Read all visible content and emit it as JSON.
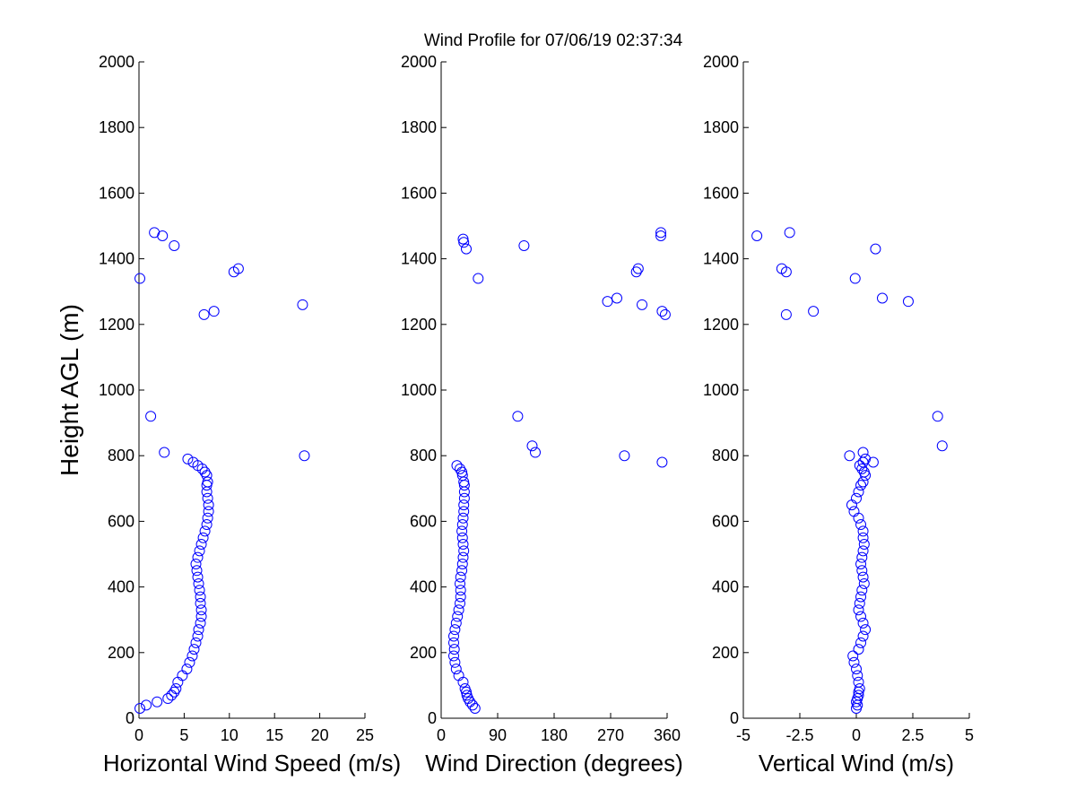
{
  "title": "Wind Profile for  07/06/19 02:37:34",
  "colors": {
    "marker": "#0000ff",
    "axes": "#000000",
    "background": "#ffffff"
  },
  "chart_data": [
    {
      "type": "scatter",
      "xlabel": "Horizontal Wind Speed (m/s)",
      "ylabel": "Height AGL (m)",
      "xlim": [
        0,
        25
      ],
      "ylim": [
        0,
        2000
      ],
      "xticks": [
        "0",
        "5",
        "10",
        "15",
        "20",
        "25"
      ],
      "xtick_values": [
        0,
        5,
        10,
        15,
        20,
        25
      ],
      "yticks": [
        "0",
        "200",
        "400",
        "600",
        "800",
        "1000",
        "1200",
        "1400",
        "1600",
        "1800",
        "2000"
      ],
      "ytick_values": [
        0,
        200,
        400,
        600,
        800,
        1000,
        1200,
        1400,
        1600,
        1800,
        2000
      ],
      "grid": false,
      "marker": "open-circle",
      "x": [
        0.1,
        0.8,
        2.0,
        3.2,
        3.6,
        3.9,
        4.1,
        4.3,
        4.8,
        5.3,
        5.6,
        5.9,
        6.1,
        6.3,
        6.5,
        6.6,
        6.8,
        6.9,
        6.9,
        6.8,
        6.8,
        6.7,
        6.6,
        6.5,
        6.4,
        6.3,
        6.5,
        6.7,
        6.9,
        7.1,
        7.3,
        7.5,
        7.6,
        7.7,
        7.7,
        7.6,
        7.5,
        7.5,
        7.6,
        7.5,
        7.3,
        7.0,
        6.5,
        6.0,
        5.4,
        2.8,
        18.3,
        1.3,
        18.1,
        7.2,
        8.3,
        0.1,
        10.5,
        11.0,
        3.9,
        2.6,
        1.7
      ],
      "y": [
        30,
        40,
        50,
        60,
        70,
        80,
        90,
        110,
        130,
        150,
        170,
        190,
        210,
        230,
        250,
        270,
        290,
        310,
        330,
        350,
        370,
        390,
        410,
        430,
        450,
        470,
        490,
        510,
        530,
        550,
        570,
        590,
        610,
        630,
        650,
        670,
        690,
        710,
        720,
        740,
        750,
        760,
        770,
        780,
        790,
        810,
        800,
        920,
        1260,
        1230,
        1240,
        1340,
        1360,
        1370,
        1440,
        1470,
        1480
      ]
    },
    {
      "type": "scatter",
      "xlabel": "Wind Direction (degrees)",
      "xlim": [
        0,
        360
      ],
      "ylim": [
        0,
        2000
      ],
      "xticks": [
        "0",
        "90",
        "180",
        "270",
        "360"
      ],
      "xtick_values": [
        0,
        90,
        180,
        270,
        360
      ],
      "yticks": [
        "0",
        "200",
        "400",
        "600",
        "800",
        "1000",
        "1200",
        "1400",
        "1600",
        "1800",
        "2000"
      ],
      "ytick_values": [
        0,
        200,
        400,
        600,
        800,
        1000,
        1200,
        1400,
        1600,
        1800,
        2000
      ],
      "grid": false,
      "marker": "open-circle",
      "x": [
        54,
        50,
        46,
        43,
        41,
        40,
        38,
        35,
        28,
        24,
        22,
        20,
        21,
        20,
        20,
        22,
        24,
        26,
        28,
        30,
        31,
        31,
        30,
        31,
        33,
        34,
        35,
        36,
        35,
        34,
        33,
        34,
        35,
        36,
        36,
        37,
        37,
        37,
        36,
        34,
        33,
        30,
        25,
        150,
        145,
        352,
        292,
        122,
        265,
        357,
        352,
        59,
        311,
        314,
        132,
        36,
        35,
        40,
        350,
        350,
        280,
        320
      ],
      "y": [
        30,
        40,
        50,
        60,
        70,
        80,
        90,
        110,
        130,
        150,
        170,
        190,
        210,
        230,
        250,
        270,
        290,
        310,
        330,
        350,
        370,
        390,
        410,
        430,
        450,
        470,
        490,
        510,
        530,
        550,
        570,
        590,
        610,
        630,
        650,
        670,
        690,
        710,
        720,
        740,
        750,
        760,
        770,
        810,
        830,
        780,
        800,
        920,
        1270,
        1230,
        1240,
        1340,
        1360,
        1370,
        1440,
        1450,
        1460,
        1430,
        1470,
        1480,
        1280,
        1260
      ]
    },
    {
      "type": "scatter",
      "xlabel": "Vertical Wind (m/s)",
      "xlim": [
        -5,
        5
      ],
      "ylim": [
        0,
        2000
      ],
      "xticks": [
        "-5",
        "-2.5",
        "0",
        "2.5",
        "5"
      ],
      "xtick_values": [
        -5,
        -2.5,
        0,
        2.5,
        5
      ],
      "yticks": [
        "0",
        "200",
        "400",
        "600",
        "800",
        "1000",
        "1200",
        "1400",
        "1600",
        "1800",
        "2000"
      ],
      "ytick_values": [
        0,
        200,
        400,
        600,
        800,
        1000,
        1200,
        1400,
        1600,
        1800,
        2000
      ],
      "grid": false,
      "marker": "open-circle",
      "x": [
        0.0,
        0.05,
        0.0,
        0.05,
        0.1,
        0.1,
        0.15,
        0.1,
        0.05,
        0.0,
        -0.1,
        -0.15,
        0.1,
        0.2,
        0.3,
        0.4,
        0.3,
        0.2,
        0.1,
        0.15,
        0.2,
        0.25,
        0.35,
        0.3,
        0.25,
        0.2,
        0.25,
        0.3,
        0.35,
        0.3,
        0.3,
        0.2,
        0.1,
        -0.1,
        -0.2,
        0.0,
        0.1,
        0.2,
        0.3,
        0.4,
        0.35,
        0.25,
        0.15,
        0.3,
        0.4,
        0.75,
        0.3,
        -0.3,
        3.6,
        3.8,
        -3.1,
        -1.9,
        1.15,
        2.3,
        -0.05,
        -3.3,
        -3.1,
        0.85,
        -4.4,
        -2.95
      ],
      "y": [
        30,
        40,
        50,
        60,
        70,
        80,
        90,
        110,
        130,
        150,
        170,
        190,
        210,
        230,
        250,
        270,
        290,
        310,
        330,
        350,
        370,
        390,
        410,
        430,
        450,
        470,
        490,
        510,
        530,
        550,
        570,
        590,
        610,
        630,
        650,
        670,
        690,
        710,
        720,
        740,
        750,
        760,
        770,
        780,
        790,
        780,
        810,
        800,
        920,
        830,
        1230,
        1240,
        1280,
        1270,
        1340,
        1370,
        1360,
        1430,
        1470,
        1480
      ]
    }
  ]
}
